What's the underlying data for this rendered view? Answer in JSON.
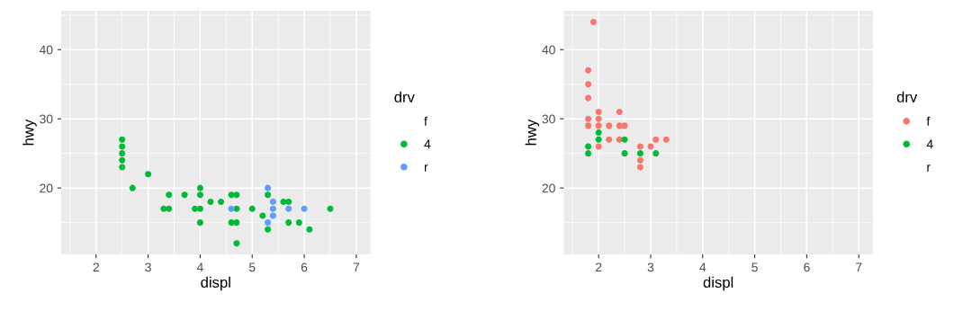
{
  "chart_data": [
    {
      "type": "scatter",
      "xlabel": "displ",
      "ylabel": "hwy",
      "legend_title": "drv",
      "legend": "right",
      "grid": true,
      "marker": "circle",
      "xlim": [
        1.33,
        7.27
      ],
      "ylim": [
        10.4,
        45.6
      ],
      "xticks": [
        2,
        3,
        4,
        5,
        6,
        7
      ],
      "yticks": [
        20,
        30,
        40
      ],
      "series": [
        {
          "name": "f"
        },
        {
          "name": "4",
          "color": "#00ba38",
          "x": [
            2.5,
            2.5,
            2.5,
            2.5,
            2.5,
            3.0,
            2.7,
            3.4,
            3.7,
            4.0,
            4.0,
            4.0,
            4.0,
            4.2,
            4.4,
            3.3,
            3.4,
            3.9,
            4.6,
            4.7,
            4.7,
            4.6,
            4.7,
            4.7,
            5.0,
            5.2,
            5.3,
            5.3,
            5.6,
            5.7,
            5.7,
            5.9,
            6.1,
            6.5
          ],
          "values": [
            27,
            26,
            25,
            24,
            23,
            22,
            20,
            19,
            19,
            20,
            19,
            17,
            15,
            18,
            18,
            17,
            17,
            17,
            19,
            19,
            17,
            15,
            15,
            12,
            17,
            16,
            19,
            14,
            18,
            18,
            15,
            15,
            14,
            17
          ]
        },
        {
          "name": "r",
          "color": "#619cff",
          "x": [
            4.6,
            5.3,
            5.3,
            5.4,
            5.4,
            5.4,
            5.7,
            6.0
          ],
          "values": [
            17,
            20,
            15,
            18,
            17,
            16,
            17,
            17
          ]
        }
      ]
    },
    {
      "type": "scatter",
      "xlabel": "displ",
      "ylabel": "hwy",
      "legend_title": "drv",
      "legend": "right",
      "grid": true,
      "marker": "circle",
      "xlim": [
        1.33,
        7.27
      ],
      "ylim": [
        10.4,
        45.6
      ],
      "xticks": [
        2,
        3,
        4,
        5,
        6,
        7
      ],
      "yticks": [
        20,
        30,
        40
      ],
      "series": [
        {
          "name": "f",
          "color": "#f8766d",
          "x": [
            1.9,
            1.8,
            1.8,
            1.8,
            1.8,
            1.8,
            2.0,
            2.0,
            2.0,
            2.0,
            2.2,
            2.2,
            2.4,
            2.4,
            2.4,
            2.5,
            2.8,
            2.8,
            2.8,
            3.0,
            3.1,
            3.3
          ],
          "values": [
            44,
            37,
            35,
            33,
            30,
            29,
            31,
            30,
            29,
            26,
            29,
            27,
            31,
            29,
            27,
            29,
            26,
            24,
            23,
            26,
            27,
            27
          ]
        },
        {
          "name": "4",
          "color": "#00ba38",
          "x": [
            1.8,
            1.8,
            2.0,
            2.0,
            2.5,
            2.5,
            2.8,
            3.1
          ],
          "values": [
            26,
            25,
            28,
            27,
            27,
            25,
            25,
            25
          ]
        },
        {
          "name": "r"
        }
      ]
    }
  ]
}
